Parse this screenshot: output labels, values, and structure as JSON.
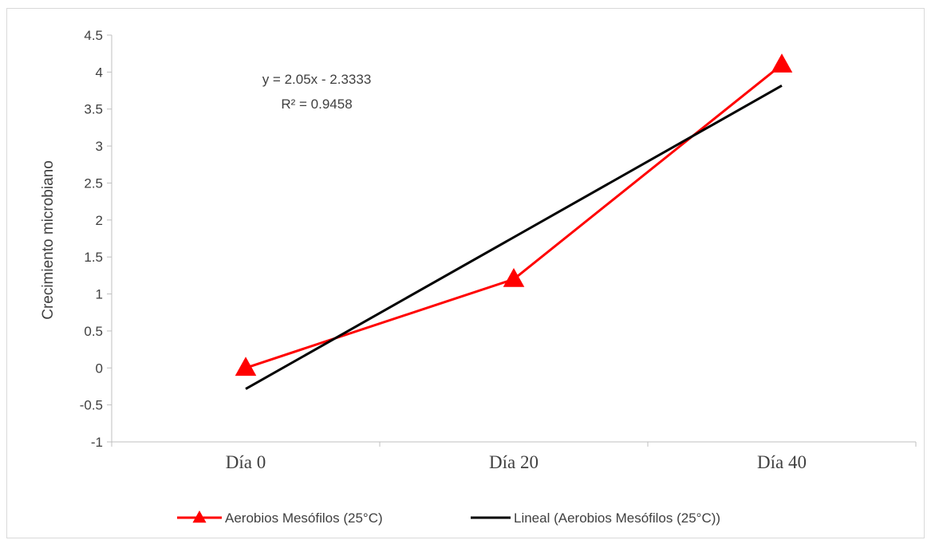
{
  "chart_data": {
    "type": "line",
    "categories": [
      "Día 0",
      "Día 20",
      "Día 40"
    ],
    "series": [
      {
        "name": "Aerobios Mesófilos (25°C)",
        "values": [
          0,
          1.2,
          4.1
        ],
        "color": "#ff0000",
        "marker": "triangle"
      },
      {
        "name": "Lineal (Aerobios Mesófilos (25°C))",
        "trendline": true,
        "slope": 2.05,
        "intercept": -2.3333,
        "color": "#000000"
      }
    ],
    "ylabel": "Crecimiento microbiano",
    "xlabel": "",
    "ylim": [
      -1,
      4.5
    ],
    "yticks": [
      "4.5",
      "4",
      "3.5",
      "3",
      "2.5",
      "2",
      "1.5",
      "1",
      "0.5",
      "0",
      "-0.5",
      "-1"
    ],
    "annotation": {
      "equation": "y = 2.05x - 2.3333",
      "r_squared": "R² = 0.9458"
    },
    "grid": false,
    "legend_position": "bottom"
  }
}
